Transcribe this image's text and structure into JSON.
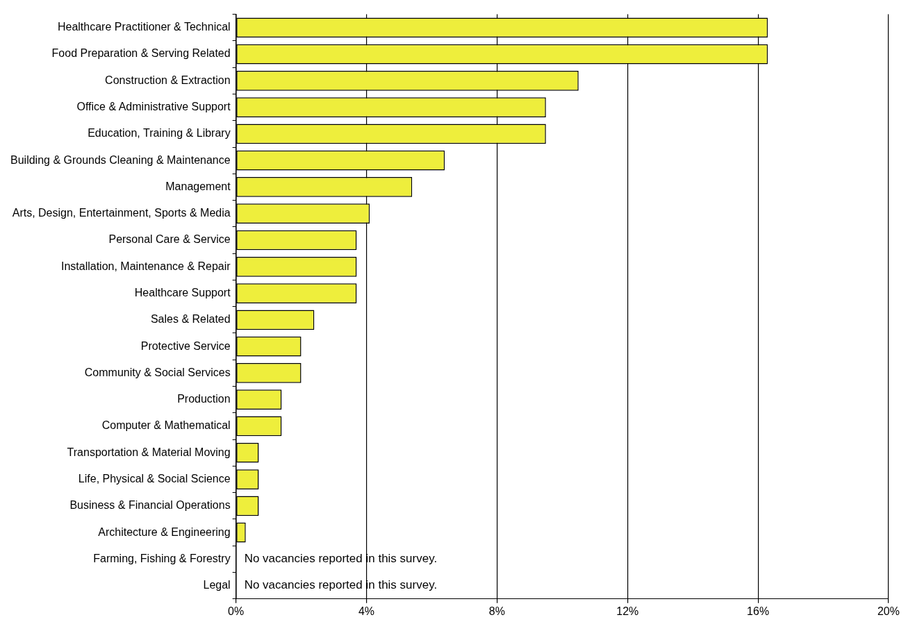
{
  "chart_data": {
    "type": "bar",
    "orientation": "horizontal",
    "categories": [
      "Healthcare Practitioner & Technical",
      "Food Preparation & Serving Related",
      "Construction & Extraction",
      "Office & Administrative Support",
      "Education, Training & Library",
      "Building & Grounds Cleaning & Maintenance",
      "Management",
      "Arts, Design, Entertainment, Sports & Media",
      "Personal Care & Service",
      "Installation, Maintenance & Repair",
      "Healthcare Support",
      "Sales & Related",
      "Protective Service",
      "Community & Social Services",
      "Production",
      "Computer & Mathematical",
      "Transportation & Material Moving",
      "Life, Physical & Social Science",
      "Business & Financial Operations",
      "Architecture & Engineering",
      "Farming, Fishing & Forestry",
      "Legal"
    ],
    "values": [
      16.3,
      16.3,
      10.5,
      9.5,
      9.5,
      6.4,
      5.4,
      4.1,
      3.7,
      3.7,
      3.7,
      2.4,
      2.0,
      2.0,
      1.4,
      1.4,
      0.7,
      0.7,
      0.7,
      0.3,
      null,
      null
    ],
    "color": "#eeee3c",
    "xlim": [
      0,
      20
    ],
    "xticks": [
      {
        "value": 0,
        "label": "0%"
      },
      {
        "value": 4,
        "label": "4%"
      },
      {
        "value": 8,
        "label": "8%"
      },
      {
        "value": 12,
        "label": "12%"
      },
      {
        "value": 16,
        "label": "16%"
      },
      {
        "value": 20,
        "label": "20%"
      }
    ],
    "grid": "x",
    "annotations": [
      "No vacancies reported in this survey.",
      "No vacancies reported in this survey."
    ]
  }
}
